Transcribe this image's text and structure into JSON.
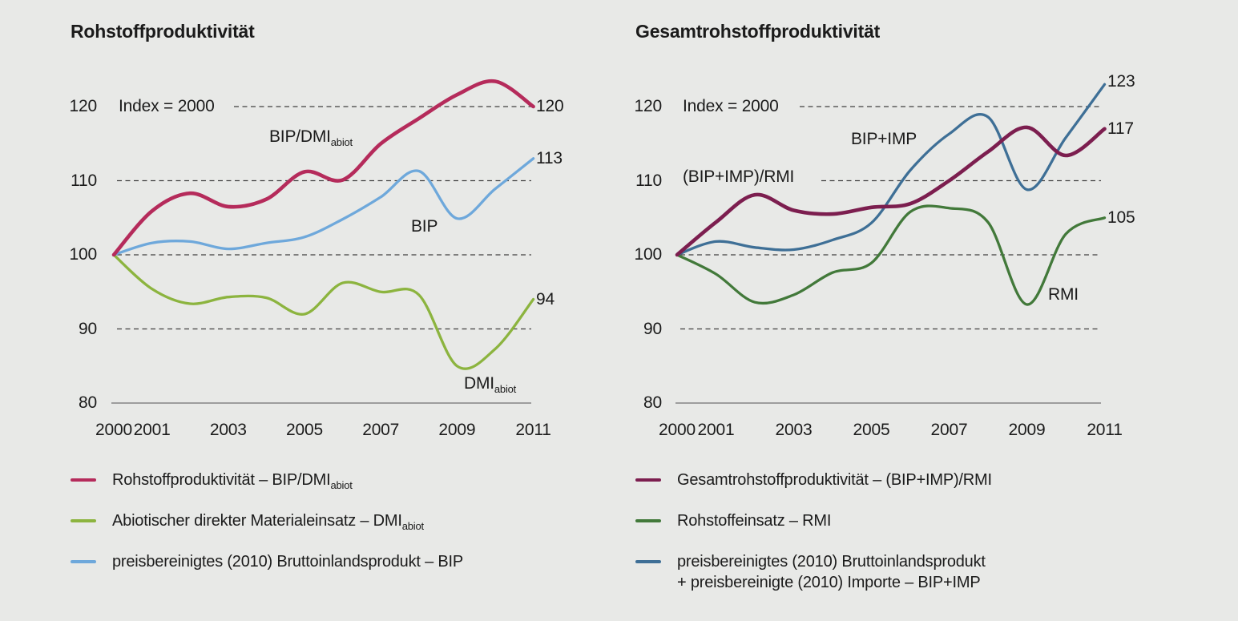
{
  "figure": {
    "background": "#e8e9e7",
    "grid_color": "#404040",
    "baseline_color": "#9d9d9d",
    "text_color": "#1b1b1b"
  },
  "chart_data": [
    {
      "type": "line",
      "title": "Rohstoffproduktivität",
      "index_note": "Index = 2000",
      "x": [
        2000,
        2001,
        2002,
        2003,
        2004,
        2005,
        2006,
        2007,
        2008,
        2009,
        2010,
        2011
      ],
      "x_tick_labels": [
        "2000",
        "2001",
        "2003",
        "2005",
        "2007",
        "2009",
        "2011"
      ],
      "x_tick_years": [
        2000,
        2001,
        2003,
        2005,
        2007,
        2009,
        2011
      ],
      "y_ticks": [
        120,
        110,
        100,
        90,
        80
      ],
      "ylim": [
        80,
        125
      ],
      "grid": "dashed horizontal at 90,100,110,120; solid baseline at 80",
      "series": [
        {
          "name": "Rohstoffproduktivität – BIP/DMIabiot",
          "color": "#b52b5b",
          "width": 4.6,
          "values": [
            100,
            105.9,
            108.3,
            106.5,
            107.5,
            111.2,
            110.1,
            115.0,
            118.4,
            121.6,
            123.4,
            120
          ]
        },
        {
          "name": "Abiotischer direkter Materialeinsatz – DMIabiot",
          "color": "#8cb43f",
          "width": 3.3,
          "values": [
            100,
            95.4,
            93.4,
            94.3,
            94.2,
            92.0,
            96.2,
            95.0,
            94.6,
            85.0,
            87.3,
            94
          ]
        },
        {
          "name": "preisbereinigtes (2010) Bruttoinlandsprodukt – BIP",
          "color": "#6ea8db",
          "width": 3.3,
          "values": [
            100,
            101.6,
            101.8,
            100.8,
            101.6,
            102.4,
            104.8,
            107.8,
            111.3,
            104.9,
            108.9,
            113
          ]
        }
      ],
      "curve_labels": [
        {
          "id": "bip-dmi-abiot",
          "parts": [
            {
              "t": "BIP/DMI"
            },
            {
              "t": "abiot",
              "sub": true
            }
          ]
        },
        {
          "id": "dmi-abiot",
          "parts": [
            {
              "t": "DMI"
            },
            {
              "t": "abiot",
              "sub": true
            }
          ]
        },
        {
          "id": "bip",
          "parts": [
            {
              "t": "BIP"
            }
          ]
        }
      ],
      "end_labels": [
        {
          "text": "120",
          "value": 120
        },
        {
          "text": "113",
          "value": 113
        },
        {
          "text": "94",
          "value": 94
        }
      ],
      "legend": [
        {
          "series": 0,
          "lines": [
            [
              {
                "t": "Rohstoffproduktivität – BIP/DMI"
              },
              {
                "t": "abiot",
                "sub": true
              }
            ]
          ]
        },
        {
          "series": 1,
          "lines": [
            [
              {
                "t": "Abiotischer direkter Materialeinsatz – DMI"
              },
              {
                "t": "abiot",
                "sub": true
              }
            ]
          ]
        },
        {
          "series": 2,
          "lines": [
            [
              {
                "t": "preisbereinigtes (2010) Bruttoinlandsprodukt – BIP"
              }
            ]
          ]
        }
      ]
    },
    {
      "type": "line",
      "title": "Gesamtrohstoffproduktivität",
      "index_note": "Index = 2000",
      "x": [
        2000,
        2001,
        2002,
        2003,
        2004,
        2005,
        2006,
        2007,
        2008,
        2009,
        2010,
        2011
      ],
      "x_tick_labels": [
        "2000",
        "2001",
        "2003",
        "2005",
        "2007",
        "2009",
        "2011"
      ],
      "x_tick_years": [
        2000,
        2001,
        2003,
        2005,
        2007,
        2009,
        2011
      ],
      "y_ticks": [
        120,
        110,
        100,
        90,
        80
      ],
      "ylim": [
        80,
        125
      ],
      "grid": "dashed horizontal at 90,100,110,120; solid baseline at 80",
      "series": [
        {
          "name": "Gesamtrohstoffproduktivität – (BIP+IMP)/RMI",
          "color": "#7c1e4f",
          "width": 4.6,
          "values": [
            100,
            104.4,
            108.1,
            106.0,
            105.5,
            106.4,
            106.9,
            110.0,
            113.9,
            117.2,
            113.4,
            117
          ]
        },
        {
          "name": "Rohstoffeinsatz – RMI",
          "color": "#42793a",
          "width": 3.3,
          "values": [
            100,
            97.4,
            93.6,
            94.6,
            97.6,
            98.9,
            105.8,
            106.3,
            104.4,
            93.3,
            102.8,
            105
          ]
        },
        {
          "name": "preisbereinigtes (2010) Bruttoinlandsprodukt + preisbereinigte (2010) Importe – BIP+IMP",
          "color": "#3e6f96",
          "width": 3.3,
          "values": [
            100,
            101.8,
            101.0,
            100.7,
            102.0,
            104.3,
            111.4,
            116.3,
            118.6,
            108.8,
            115.8,
            123
          ]
        }
      ],
      "curve_labels": [
        {
          "id": "bip-imp",
          "parts": [
            {
              "t": "BIP+IMP"
            }
          ]
        },
        {
          "id": "bip-imp-rmi",
          "parts": [
            {
              "t": "(BIP+IMP)/RMI"
            }
          ]
        },
        {
          "id": "rmi",
          "parts": [
            {
              "t": "RMI"
            }
          ]
        }
      ],
      "end_labels": [
        {
          "text": "123",
          "value": 123
        },
        {
          "text": "117",
          "value": 117
        },
        {
          "text": "105",
          "value": 105
        }
      ],
      "legend": [
        {
          "series": 0,
          "lines": [
            [
              {
                "t": "Gesamtrohstoffproduktivität – (BIP+IMP)/RMI"
              }
            ]
          ]
        },
        {
          "series": 1,
          "lines": [
            [
              {
                "t": "Rohstoffeinsatz – RMI"
              }
            ]
          ]
        },
        {
          "series": 2,
          "lines": [
            [
              {
                "t": "preisbereinigtes (2010) Bruttoinlandsprodukt"
              }
            ],
            [
              {
                "t": "+ preisbereinigte (2010) Importe – BIP+IMP"
              }
            ]
          ]
        }
      ]
    }
  ]
}
